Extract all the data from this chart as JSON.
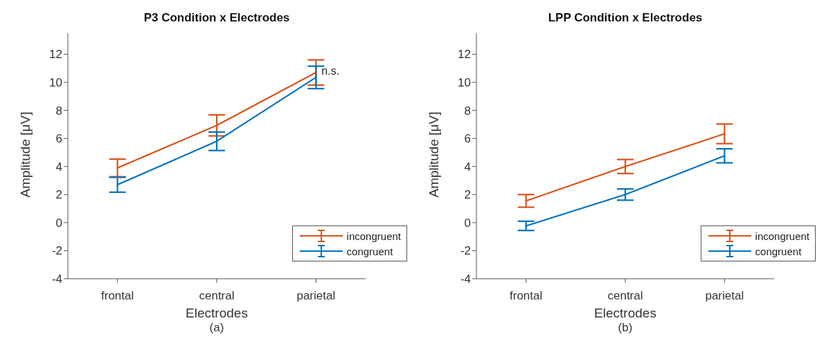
{
  "chart_data": [
    {
      "type": "line",
      "title": "P3 Condition x Electrodes",
      "xlabel": "Electrodes",
      "ylabel": "Amplitude [μV]",
      "categories": [
        "frontal",
        "central",
        "parietal"
      ],
      "series": [
        {
          "name": "incongruent",
          "color": "#d95319",
          "values": [
            3.9,
            6.93,
            10.7
          ],
          "errors": [
            0.63,
            0.75,
            0.9
          ]
        },
        {
          "name": "congruent",
          "color": "#0072bd",
          "values": [
            2.7,
            5.8,
            10.35
          ],
          "errors": [
            0.53,
            0.66,
            0.8
          ]
        }
      ],
      "ylim": [
        -4,
        13.5
      ],
      "yticks": [
        -4,
        -2,
        0,
        2,
        4,
        6,
        8,
        10,
        12
      ],
      "grid": false,
      "legend": "bottom right",
      "annotations": [
        {
          "text": "n.s.",
          "x": "parietal",
          "y": 10.8
        },
        "(a)"
      ]
    },
    {
      "type": "line",
      "title": "LPP Condition x Electrodes",
      "xlabel": "Electrodes",
      "ylabel": "Amplitude [μV]",
      "categories": [
        "frontal",
        "central",
        "parietal"
      ],
      "series": [
        {
          "name": "incongruent",
          "color": "#d95319",
          "values": [
            1.55,
            4.0,
            6.33
          ],
          "errors": [
            0.45,
            0.5,
            0.7
          ]
        },
        {
          "name": "congruent",
          "color": "#0072bd",
          "values": [
            -0.23,
            2.0,
            4.76
          ],
          "errors": [
            0.33,
            0.4,
            0.5
          ]
        }
      ],
      "ylim": [
        -4,
        13.5
      ],
      "yticks": [
        -4,
        -2,
        0,
        2,
        4,
        6,
        8,
        10,
        12
      ],
      "grid": false,
      "legend": "bottom right",
      "annotations": [
        "(b)"
      ]
    }
  ]
}
